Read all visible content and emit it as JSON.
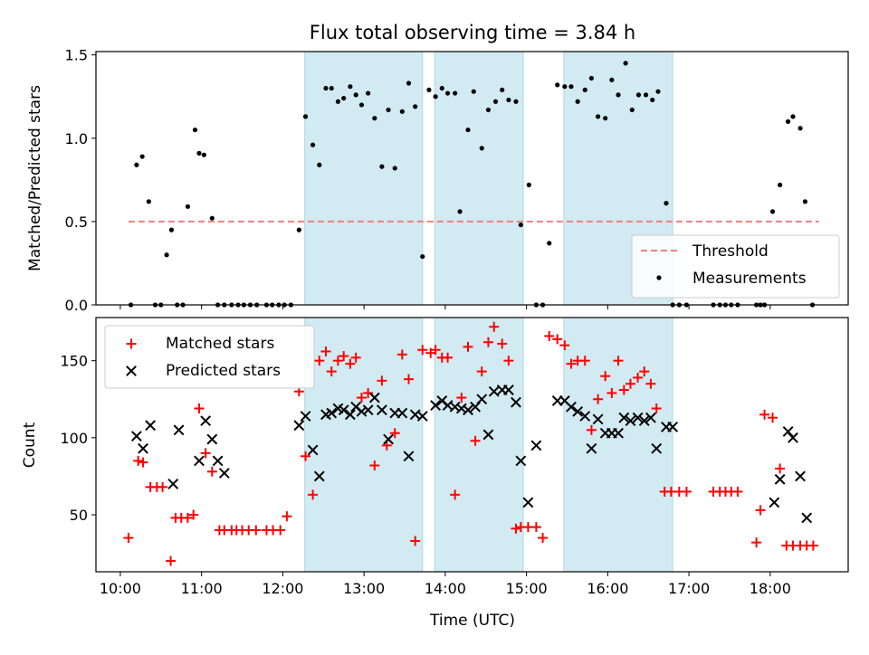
{
  "chart_data": {
    "title": "Flux total observing time = 3.84 h",
    "xlabel": "Time (UTC)",
    "x_unit": "hours (UTC)",
    "xlim": [
      9.7,
      18.96
    ],
    "x_ticks": [
      {
        "value": 10,
        "label": "10:00"
      },
      {
        "value": 11,
        "label": "11:00"
      },
      {
        "value": 12,
        "label": "12:00"
      },
      {
        "value": 13,
        "label": "13:00"
      },
      {
        "value": 14,
        "label": "14:00"
      },
      {
        "value": 15,
        "label": "15:00"
      },
      {
        "value": 16,
        "label": "16:00"
      },
      {
        "value": 17,
        "label": "17:00"
      },
      {
        "value": 18,
        "label": "18:00"
      }
    ],
    "shaded_intervals": [
      [
        12.27,
        13.72
      ],
      [
        13.87,
        14.96
      ],
      [
        15.46,
        16.8
      ]
    ],
    "shade_color": "#add8e6",
    "panels": [
      {
        "type": "scatter",
        "ylabel": "Matched/Predicted stars",
        "ylim": [
          0,
          1.52
        ],
        "yticks": [
          0.0,
          0.5,
          1.0,
          1.5
        ],
        "ytick_labels": [
          "0.0",
          "0.5",
          "1.0",
          "1.5"
        ],
        "legend_position": "lower-right",
        "threshold": {
          "name": "Threshold",
          "value": 0.5,
          "x_range": [
            10.1,
            18.6
          ],
          "color": "#f08080",
          "style": "dashed"
        },
        "series": [
          {
            "name": "Measurements",
            "color": "#000000",
            "marker": "dot",
            "x": [
              10.13,
              10.2,
              10.27,
              10.35,
              10.43,
              10.5,
              10.57,
              10.63,
              10.7,
              10.77,
              10.83,
              10.92,
              10.97,
              11.03,
              11.13,
              11.2,
              11.28,
              11.37,
              11.45,
              11.52,
              11.6,
              11.68,
              11.8,
              11.87,
              11.95,
              12.02,
              12.1,
              12.2,
              12.28,
              12.37,
              12.45,
              12.53,
              12.6,
              12.68,
              12.75,
              12.83,
              12.9,
              12.97,
              13.05,
              13.13,
              13.22,
              13.3,
              13.38,
              13.47,
              13.55,
              13.63,
              13.72,
              13.8,
              13.88,
              13.96,
              14.03,
              14.12,
              14.18,
              14.28,
              14.35,
              14.45,
              14.53,
              14.62,
              14.7,
              14.78,
              14.87,
              14.93,
              15.03,
              15.12,
              15.2,
              15.28,
              15.38,
              15.47,
              15.55,
              15.63,
              15.72,
              15.8,
              15.88,
              15.97,
              16.05,
              16.13,
              16.22,
              16.3,
              16.38,
              16.47,
              16.55,
              16.62,
              16.72,
              16.8,
              16.88,
              16.97,
              17.3,
              17.38,
              17.45,
              17.52,
              17.6,
              17.83,
              17.88,
              17.93,
              18.03,
              18.12,
              18.22,
              18.28,
              18.37,
              18.43,
              18.52
            ],
            "y": [
              0,
              0.84,
              0.89,
              0.62,
              0,
              0,
              0.3,
              0.45,
              0,
              0,
              0.59,
              1.05,
              0.91,
              0.9,
              0.52,
              0,
              0,
              0,
              0,
              0,
              0,
              0,
              0,
              0,
              0,
              0,
              0,
              0.45,
              1.13,
              0.96,
              0.84,
              1.3,
              1.3,
              1.22,
              1.24,
              1.31,
              1.26,
              1.2,
              1.27,
              1.12,
              0.83,
              1.17,
              0.82,
              1.16,
              1.33,
              1.19,
              0.29,
              1.29,
              1.25,
              1.3,
              1.27,
              1.27,
              0.56,
              1.05,
              1.28,
              0.94,
              1.17,
              1.22,
              1.29,
              1.23,
              1.22,
              0.48,
              0.72,
              0,
              0,
              0.37,
              1.32,
              1.31,
              1.31,
              1.22,
              1.29,
              1.36,
              1.13,
              1.12,
              1.35,
              1.26,
              1.45,
              1.17,
              1.26,
              1.26,
              1.23,
              1.28,
              0.61,
              0,
              0,
              0,
              0,
              0,
              0,
              0,
              0,
              0,
              0,
              0,
              0.56,
              0.72,
              1.1,
              1.13,
              1.06,
              0.62,
              0
            ]
          }
        ]
      },
      {
        "type": "scatter",
        "ylabel": "Count",
        "ylim": [
          13,
          178
        ],
        "yticks": [
          50,
          100,
          150
        ],
        "ytick_labels": [
          "50",
          "100",
          "150"
        ],
        "legend_position": "upper-left",
        "series": [
          {
            "name": "Matched stars",
            "color": "#ff0000",
            "marker": "plus",
            "x": [
              10.1,
              10.22,
              10.28,
              10.37,
              10.45,
              10.52,
              10.62,
              10.68,
              10.75,
              10.83,
              10.9,
              10.97,
              11.05,
              11.13,
              11.22,
              11.28,
              11.37,
              11.43,
              11.5,
              11.58,
              11.67,
              11.8,
              11.88,
              11.97,
              12.05,
              12.2,
              12.28,
              12.37,
              12.45,
              12.53,
              12.6,
              12.68,
              12.75,
              12.83,
              12.9,
              12.97,
              13.05,
              13.13,
              13.22,
              13.28,
              13.38,
              13.47,
              13.55,
              13.63,
              13.72,
              13.82,
              13.88,
              13.96,
              14.03,
              14.12,
              14.2,
              14.28,
              14.37,
              14.45,
              14.53,
              14.6,
              14.7,
              14.78,
              14.87,
              14.93,
              15.02,
              15.12,
              15.2,
              15.28,
              15.38,
              15.47,
              15.55,
              15.63,
              15.72,
              15.8,
              15.88,
              15.97,
              16.05,
              16.13,
              16.2,
              16.28,
              16.37,
              16.45,
              16.53,
              16.6,
              16.7,
              16.78,
              16.88,
              16.97,
              17.3,
              17.38,
              17.45,
              17.52,
              17.6,
              17.83,
              17.88,
              17.93,
              18.03,
              18.12,
              18.2,
              18.28,
              18.37,
              18.45,
              18.53
            ],
            "y": [
              35,
              85,
              84,
              68,
              68,
              68,
              20,
              48,
              48,
              48,
              50,
              119,
              90,
              78,
              40,
              40,
              40,
              40,
              40,
              40,
              40,
              40,
              40,
              40,
              49,
              130,
              88,
              63,
              150,
              156,
              143,
              150,
              153,
              148,
              152,
              126,
              129,
              82,
              137,
              95,
              103,
              154,
              138,
              33,
              157,
              155,
              157,
              152,
              152,
              63,
              126,
              159,
              98,
              143,
              162,
              172,
              161,
              150,
              41,
              42,
              42,
              42,
              35,
              166,
              164,
              160,
              148,
              150,
              150,
              105,
              125,
              140,
              129,
              150,
              131,
              135,
              139,
              143,
              135,
              119,
              65,
              65,
              65,
              65,
              65,
              65,
              65,
              65,
              65,
              32,
              53,
              115,
              113,
              80,
              30,
              30,
              30,
              30,
              30
            ],
            "x_override_note": ""
          },
          {
            "name": "Predicted stars",
            "color": "#000000",
            "marker": "x",
            "x": [
              10.2,
              10.28,
              10.37,
              10.65,
              10.72,
              10.97,
              11.05,
              11.13,
              11.2,
              11.28,
              12.2,
              12.28,
              12.37,
              12.45,
              12.53,
              12.6,
              12.68,
              12.75,
              12.83,
              12.9,
              12.97,
              13.05,
              13.13,
              13.22,
              13.3,
              13.38,
              13.47,
              13.55,
              13.63,
              13.72,
              13.88,
              13.96,
              14.03,
              14.12,
              14.2,
              14.28,
              14.37,
              14.45,
              14.53,
              14.6,
              14.7,
              14.78,
              14.87,
              14.93,
              15.02,
              15.12,
              15.38,
              15.47,
              15.55,
              15.63,
              15.72,
              15.8,
              15.88,
              15.97,
              16.05,
              16.13,
              16.2,
              16.28,
              16.37,
              16.45,
              16.53,
              16.6,
              16.72,
              16.8,
              18.05,
              18.12,
              18.22,
              18.28,
              18.37,
              18.45
            ],
            "y": [
              101,
              93,
              108,
              70,
              105,
              85,
              111,
              99,
              85,
              77,
              108,
              114,
              92,
              75,
              115,
              116,
              119,
              118,
              115,
              120,
              117,
              118,
              126,
              118,
              99,
              116,
              116,
              88,
              115,
              114,
              121,
              124,
              121,
              120,
              119,
              118,
              120,
              125,
              102,
              130,
              131,
              131,
              123,
              85,
              58,
              95,
              124,
              124,
              120,
              117,
              114,
              93,
              112,
              103,
              103,
              103,
              113,
              111,
              113,
              111,
              113,
              93,
              107,
              107,
              58,
              73,
              104,
              100,
              75,
              48
            ]
          }
        ]
      }
    ]
  }
}
